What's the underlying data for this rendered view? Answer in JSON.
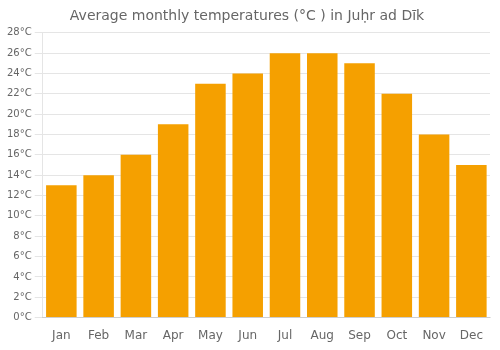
{
  "chart_data": {
    "type": "bar",
    "title": "Average monthly temperatures (°C ) in Juḥr ad Dīk",
    "categories": [
      "Jan",
      "Feb",
      "Mar",
      "Apr",
      "May",
      "Jun",
      "Jul",
      "Aug",
      "Sep",
      "Oct",
      "Nov",
      "Dec"
    ],
    "values": [
      13,
      14,
      16,
      19,
      23,
      24,
      26,
      26,
      25,
      22,
      18,
      15
    ],
    "color": "#F5A000",
    "ylim": [
      0,
      28
    ],
    "yticks": [
      {
        "value": 0,
        "label": "0°C"
      },
      {
        "value": 2,
        "label": "2°C"
      },
      {
        "value": 4,
        "label": "4°C"
      },
      {
        "value": 6,
        "label": "6°C"
      },
      {
        "value": 8,
        "label": "8°C"
      },
      {
        "value": 10,
        "label": "10°C"
      },
      {
        "value": 12,
        "label": "12°C"
      },
      {
        "value": 14,
        "label": "14°C"
      },
      {
        "value": 16,
        "label": "16°C"
      },
      {
        "value": 18,
        "label": "18°C"
      },
      {
        "value": 20,
        "label": "20°C"
      },
      {
        "value": 22,
        "label": "22°C"
      },
      {
        "value": 24,
        "label": "24°C"
      },
      {
        "value": 26,
        "label": "26°C"
      },
      {
        "value": 28,
        "label": "28°C"
      }
    ],
    "grid": true
  }
}
